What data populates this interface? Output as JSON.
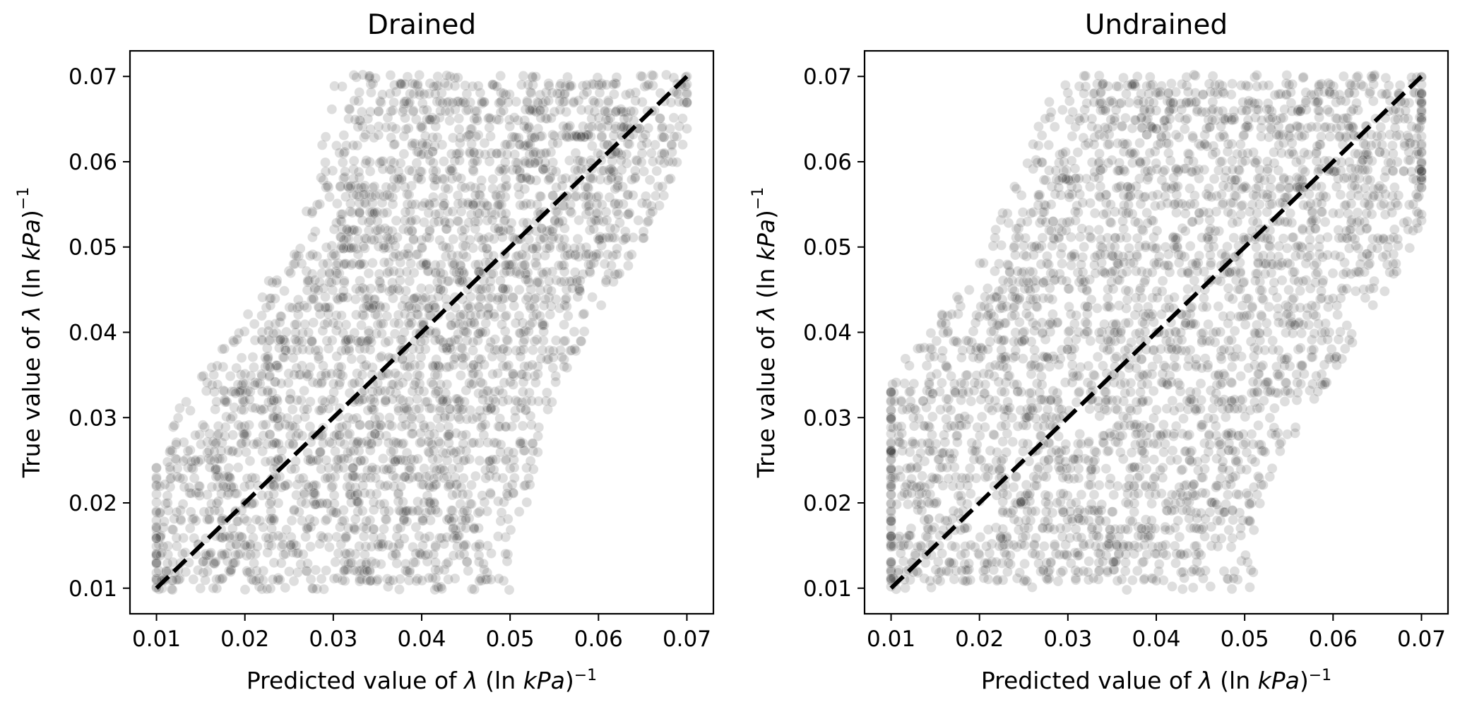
{
  "chart_data": [
    {
      "type": "scatter",
      "title": "Drained",
      "xlabel_prefix": "Predicted value of ",
      "ylabel_prefix": "True value of ",
      "label_symbol": "λ",
      "label_unit_open": " (ln ",
      "label_unit_kpa": "kPa",
      "label_unit_close": ")",
      "label_exponent": "−1",
      "xlim": [
        0.007,
        0.073
      ],
      "ylim": [
        0.007,
        0.073
      ],
      "xticks": [
        0.01,
        0.02,
        0.03,
        0.04,
        0.05,
        0.06,
        0.07
      ],
      "yticks": [
        0.01,
        0.02,
        0.03,
        0.04,
        0.05,
        0.06,
        0.07
      ],
      "xtick_labels": [
        "0.01",
        "0.02",
        "0.03",
        "0.04",
        "0.05",
        "0.06",
        "0.07"
      ],
      "ytick_labels": [
        "0.01",
        "0.02",
        "0.03",
        "0.04",
        "0.05",
        "0.06",
        "0.07"
      ],
      "reference_line": {
        "x": [
          0.01,
          0.07
        ],
        "y": [
          0.01,
          0.07
        ],
        "style": "dashed",
        "color": "#000000"
      },
      "point_color": "#222222",
      "point_opacity": 0.15,
      "point_cloud": {
        "band": [
          {
            "y": 0.01,
            "x_min": 0.01,
            "x_max": 0.046
          },
          {
            "y": 0.015,
            "x_min": 0.01,
            "x_max": 0.047
          },
          {
            "y": 0.02,
            "x_min": 0.011,
            "x_max": 0.048
          },
          {
            "y": 0.025,
            "x_min": 0.013,
            "x_max": 0.049
          },
          {
            "y": 0.03,
            "x_min": 0.016,
            "x_max": 0.05
          },
          {
            "y": 0.035,
            "x_min": 0.019,
            "x_max": 0.052
          },
          {
            "y": 0.04,
            "x_min": 0.023,
            "x_max": 0.055
          },
          {
            "y": 0.045,
            "x_min": 0.026,
            "x_max": 0.058
          },
          {
            "y": 0.05,
            "x_min": 0.029,
            "x_max": 0.061
          },
          {
            "y": 0.055,
            "x_min": 0.031,
            "x_max": 0.063
          },
          {
            "y": 0.06,
            "x_min": 0.032,
            "x_max": 0.065
          },
          {
            "y": 0.065,
            "x_min": 0.033,
            "x_max": 0.067
          },
          {
            "y": 0.07,
            "x_min": 0.034,
            "x_max": 0.069
          }
        ],
        "x_clip": [
          0.01,
          0.07
        ]
      }
    },
    {
      "type": "scatter",
      "title": "Undrained",
      "xlabel_prefix": "Predicted value of ",
      "ylabel_prefix": "True value of ",
      "label_symbol": "λ",
      "label_unit_open": " (ln ",
      "label_unit_kpa": "kPa",
      "label_unit_close": ")",
      "label_exponent": "−1",
      "xlim": [
        0.007,
        0.073
      ],
      "ylim": [
        0.007,
        0.073
      ],
      "xticks": [
        0.01,
        0.02,
        0.03,
        0.04,
        0.05,
        0.06,
        0.07
      ],
      "yticks": [
        0.01,
        0.02,
        0.03,
        0.04,
        0.05,
        0.06,
        0.07
      ],
      "xtick_labels": [
        "0.01",
        "0.02",
        "0.03",
        "0.04",
        "0.05",
        "0.06",
        "0.07"
      ],
      "ytick_labels": [
        "0.01",
        "0.02",
        "0.03",
        "0.04",
        "0.05",
        "0.06",
        "0.07"
      ],
      "reference_line": {
        "x": [
          0.01,
          0.07
        ],
        "y": [
          0.01,
          0.07
        ],
        "style": "dashed",
        "color": "#000000"
      },
      "point_color": "#222222",
      "point_opacity": 0.15,
      "point_cloud": {
        "band": [
          {
            "y": 0.01,
            "x_min": 0.01,
            "x_max": 0.047
          },
          {
            "y": 0.015,
            "x_min": 0.01,
            "x_max": 0.047
          },
          {
            "y": 0.02,
            "x_min": 0.01,
            "x_max": 0.048
          },
          {
            "y": 0.025,
            "x_min": 0.01,
            "x_max": 0.05
          },
          {
            "y": 0.03,
            "x_min": 0.011,
            "x_max": 0.053
          },
          {
            "y": 0.035,
            "x_min": 0.014,
            "x_max": 0.056
          },
          {
            "y": 0.04,
            "x_min": 0.018,
            "x_max": 0.059
          },
          {
            "y": 0.045,
            "x_min": 0.022,
            "x_max": 0.062
          },
          {
            "y": 0.05,
            "x_min": 0.025,
            "x_max": 0.065
          },
          {
            "y": 0.055,
            "x_min": 0.027,
            "x_max": 0.068
          },
          {
            "y": 0.06,
            "x_min": 0.029,
            "x_max": 0.07
          },
          {
            "y": 0.065,
            "x_min": 0.031,
            "x_max": 0.07
          },
          {
            "y": 0.07,
            "x_min": 0.033,
            "x_max": 0.07
          }
        ],
        "x_clip": [
          0.01,
          0.07
        ]
      }
    }
  ]
}
